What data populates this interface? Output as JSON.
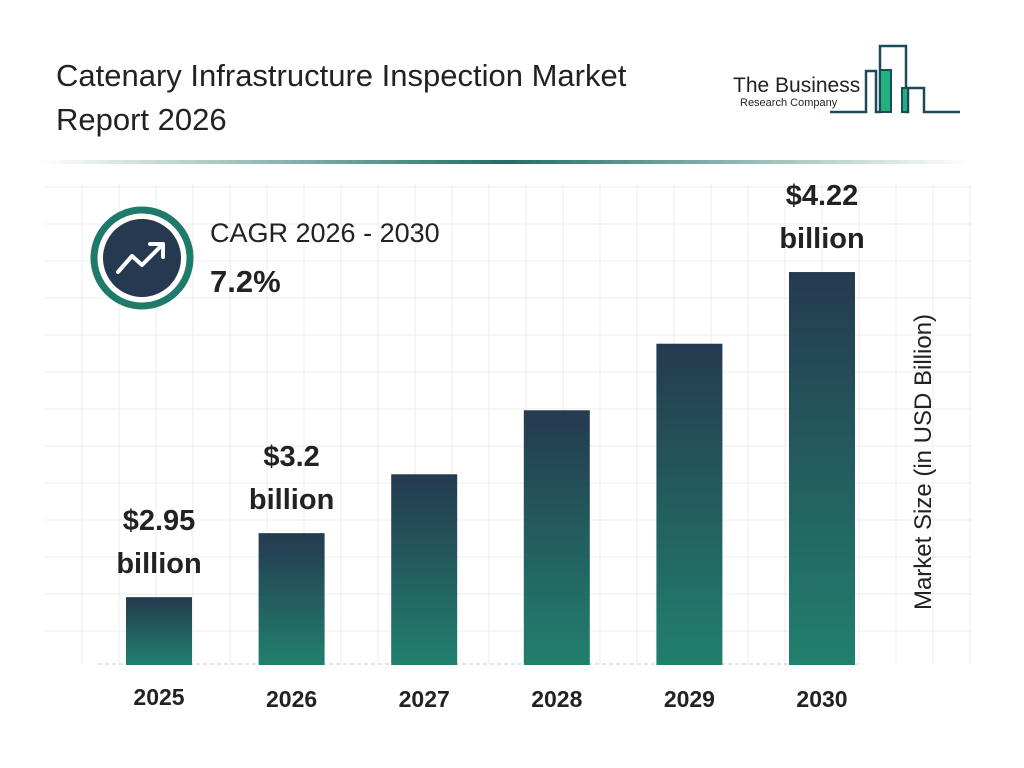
{
  "header": {
    "title": "Catenary Infrastructure Inspection Market Report 2026"
  },
  "logo": {
    "line1": "The Business",
    "line2": "Research Company"
  },
  "cagr": {
    "label": "CAGR 2026 - 2030",
    "value": "7.2%",
    "icon": "trend-up-icon"
  },
  "colors": {
    "bar_top": "#253a50",
    "bar_bottom": "#21806e",
    "accent": "#1f7a6a",
    "logo_green": "#22b07d"
  },
  "chart_data": {
    "type": "bar",
    "categories": [
      "2025",
      "2026",
      "2027",
      "2028",
      "2029",
      "2030"
    ],
    "values": [
      2.95,
      3.2,
      3.43,
      3.68,
      3.94,
      4.22
    ],
    "data_labels": [
      [
        "$2.95",
        "billion"
      ],
      [
        "$3.2",
        "billion"
      ],
      null,
      null,
      null,
      [
        "$4.22",
        "billion"
      ]
    ],
    "ylabel": "Market Size (in USD Billion)",
    "grid": true
  }
}
